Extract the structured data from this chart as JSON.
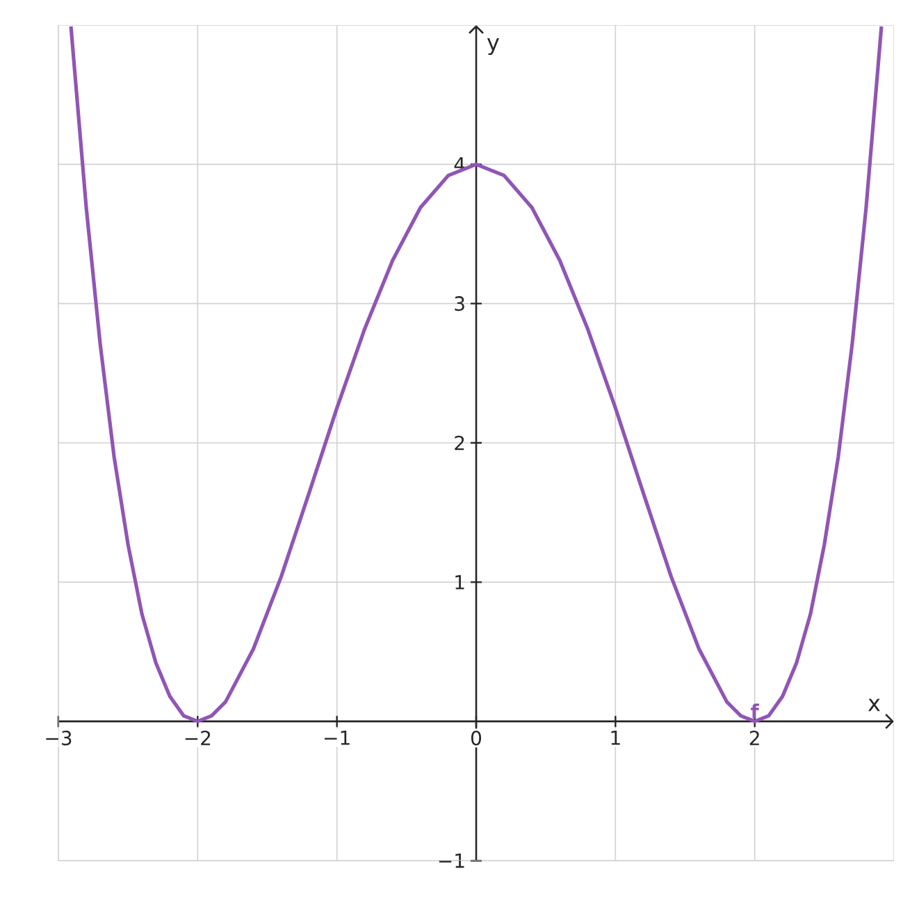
{
  "chart_data": {
    "type": "line",
    "xlabel": "x",
    "ylabel": "y",
    "x": [
      -2.91,
      -2.8,
      -2.7,
      -2.6,
      -2.5,
      -2.4,
      -2.3,
      -2.2,
      -2.1,
      -2,
      -1.9,
      -1.8,
      -1.6,
      -1.4,
      -1.2,
      -1,
      -0.8,
      -0.6,
      -0.4,
      -0.2,
      0,
      0.2,
      0.4,
      0.6,
      0.8,
      1,
      1.2,
      1.4,
      1.6,
      1.8,
      1.9,
      2,
      2.1,
      2.2,
      2.3,
      2.4,
      2.5,
      2.6,
      2.7,
      2.8,
      2.91
    ],
    "series": [
      {
        "name": "f",
        "color": "#9055b5",
        "values": [
          4.99,
          3.69,
          2.71,
          1.9,
          1.27,
          0.77,
          0.42,
          0.18,
          0.04,
          0,
          0.04,
          0.14,
          0.52,
          1.04,
          1.64,
          2.25,
          2.82,
          3.31,
          3.69,
          3.92,
          4,
          3.92,
          3.69,
          3.31,
          2.82,
          2.25,
          1.64,
          1.04,
          0.52,
          0.14,
          0.04,
          0,
          0.04,
          0.18,
          0.42,
          0.77,
          1.27,
          1.9,
          2.71,
          3.69,
          4.99
        ]
      }
    ],
    "xlim": [
      -3,
      3
    ],
    "ylim": [
      -1,
      5
    ],
    "xticks": [
      {
        "value": -3,
        "label": "−3"
      },
      {
        "value": -2,
        "label": "−2"
      },
      {
        "value": -1,
        "label": "−1"
      },
      {
        "value": 0,
        "label": "0"
      },
      {
        "value": 1,
        "label": "1"
      },
      {
        "value": 2,
        "label": "2"
      }
    ],
    "yticks": [
      {
        "value": -1,
        "label": "−1"
      },
      {
        "value": 1,
        "label": "1"
      },
      {
        "value": 2,
        "label": "2"
      },
      {
        "value": 3,
        "label": "3"
      },
      {
        "value": 4,
        "label": "4"
      }
    ],
    "grid": true,
    "marker": "none",
    "line_style": "solid"
  }
}
